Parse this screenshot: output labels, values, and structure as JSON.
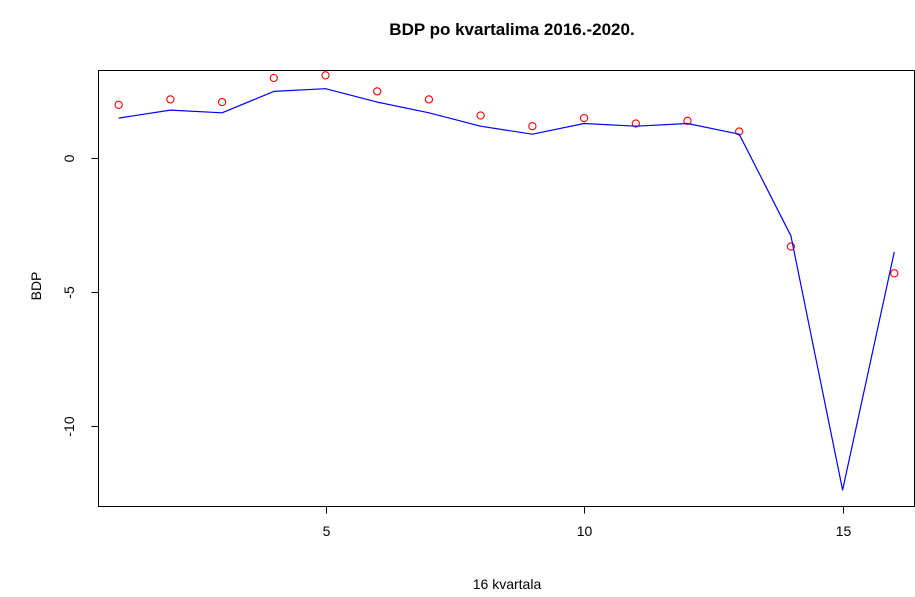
{
  "chart_data": {
    "type": "line",
    "title": "BDP po kvartalima 2016.-2020.",
    "xlabel": "16 kvartala",
    "ylabel": "BDP",
    "x": [
      1,
      2,
      3,
      4,
      5,
      6,
      7,
      8,
      9,
      10,
      11,
      12,
      13,
      14,
      15,
      16
    ],
    "xlim": [
      0.6,
      16.4
    ],
    "ylim": [
      -13.0,
      3.3
    ],
    "x_ticks": [
      5,
      10,
      15
    ],
    "x_tick_labels": [
      "5",
      "10",
      "15"
    ],
    "y_ticks": [
      -10,
      -5,
      0
    ],
    "y_tick_labels": [
      "-10",
      "-5",
      "0"
    ],
    "grid": false,
    "legend": "none",
    "series": [
      {
        "style": "points",
        "marker": "open-circle",
        "color": "#ff0000",
        "values": [
          2.0,
          2.2,
          2.1,
          3.0,
          3.1,
          2.5,
          2.2,
          1.6,
          1.2,
          1.5,
          1.3,
          1.4,
          1.0,
          -3.3,
          null,
          -4.3
        ]
      },
      {
        "style": "line",
        "color": "#0000ff",
        "values": [
          1.5,
          1.8,
          1.7,
          2.5,
          2.6,
          2.1,
          1.7,
          1.2,
          0.9,
          1.3,
          1.2,
          1.3,
          0.9,
          -2.9,
          -12.4,
          -3.5
        ]
      }
    ]
  }
}
